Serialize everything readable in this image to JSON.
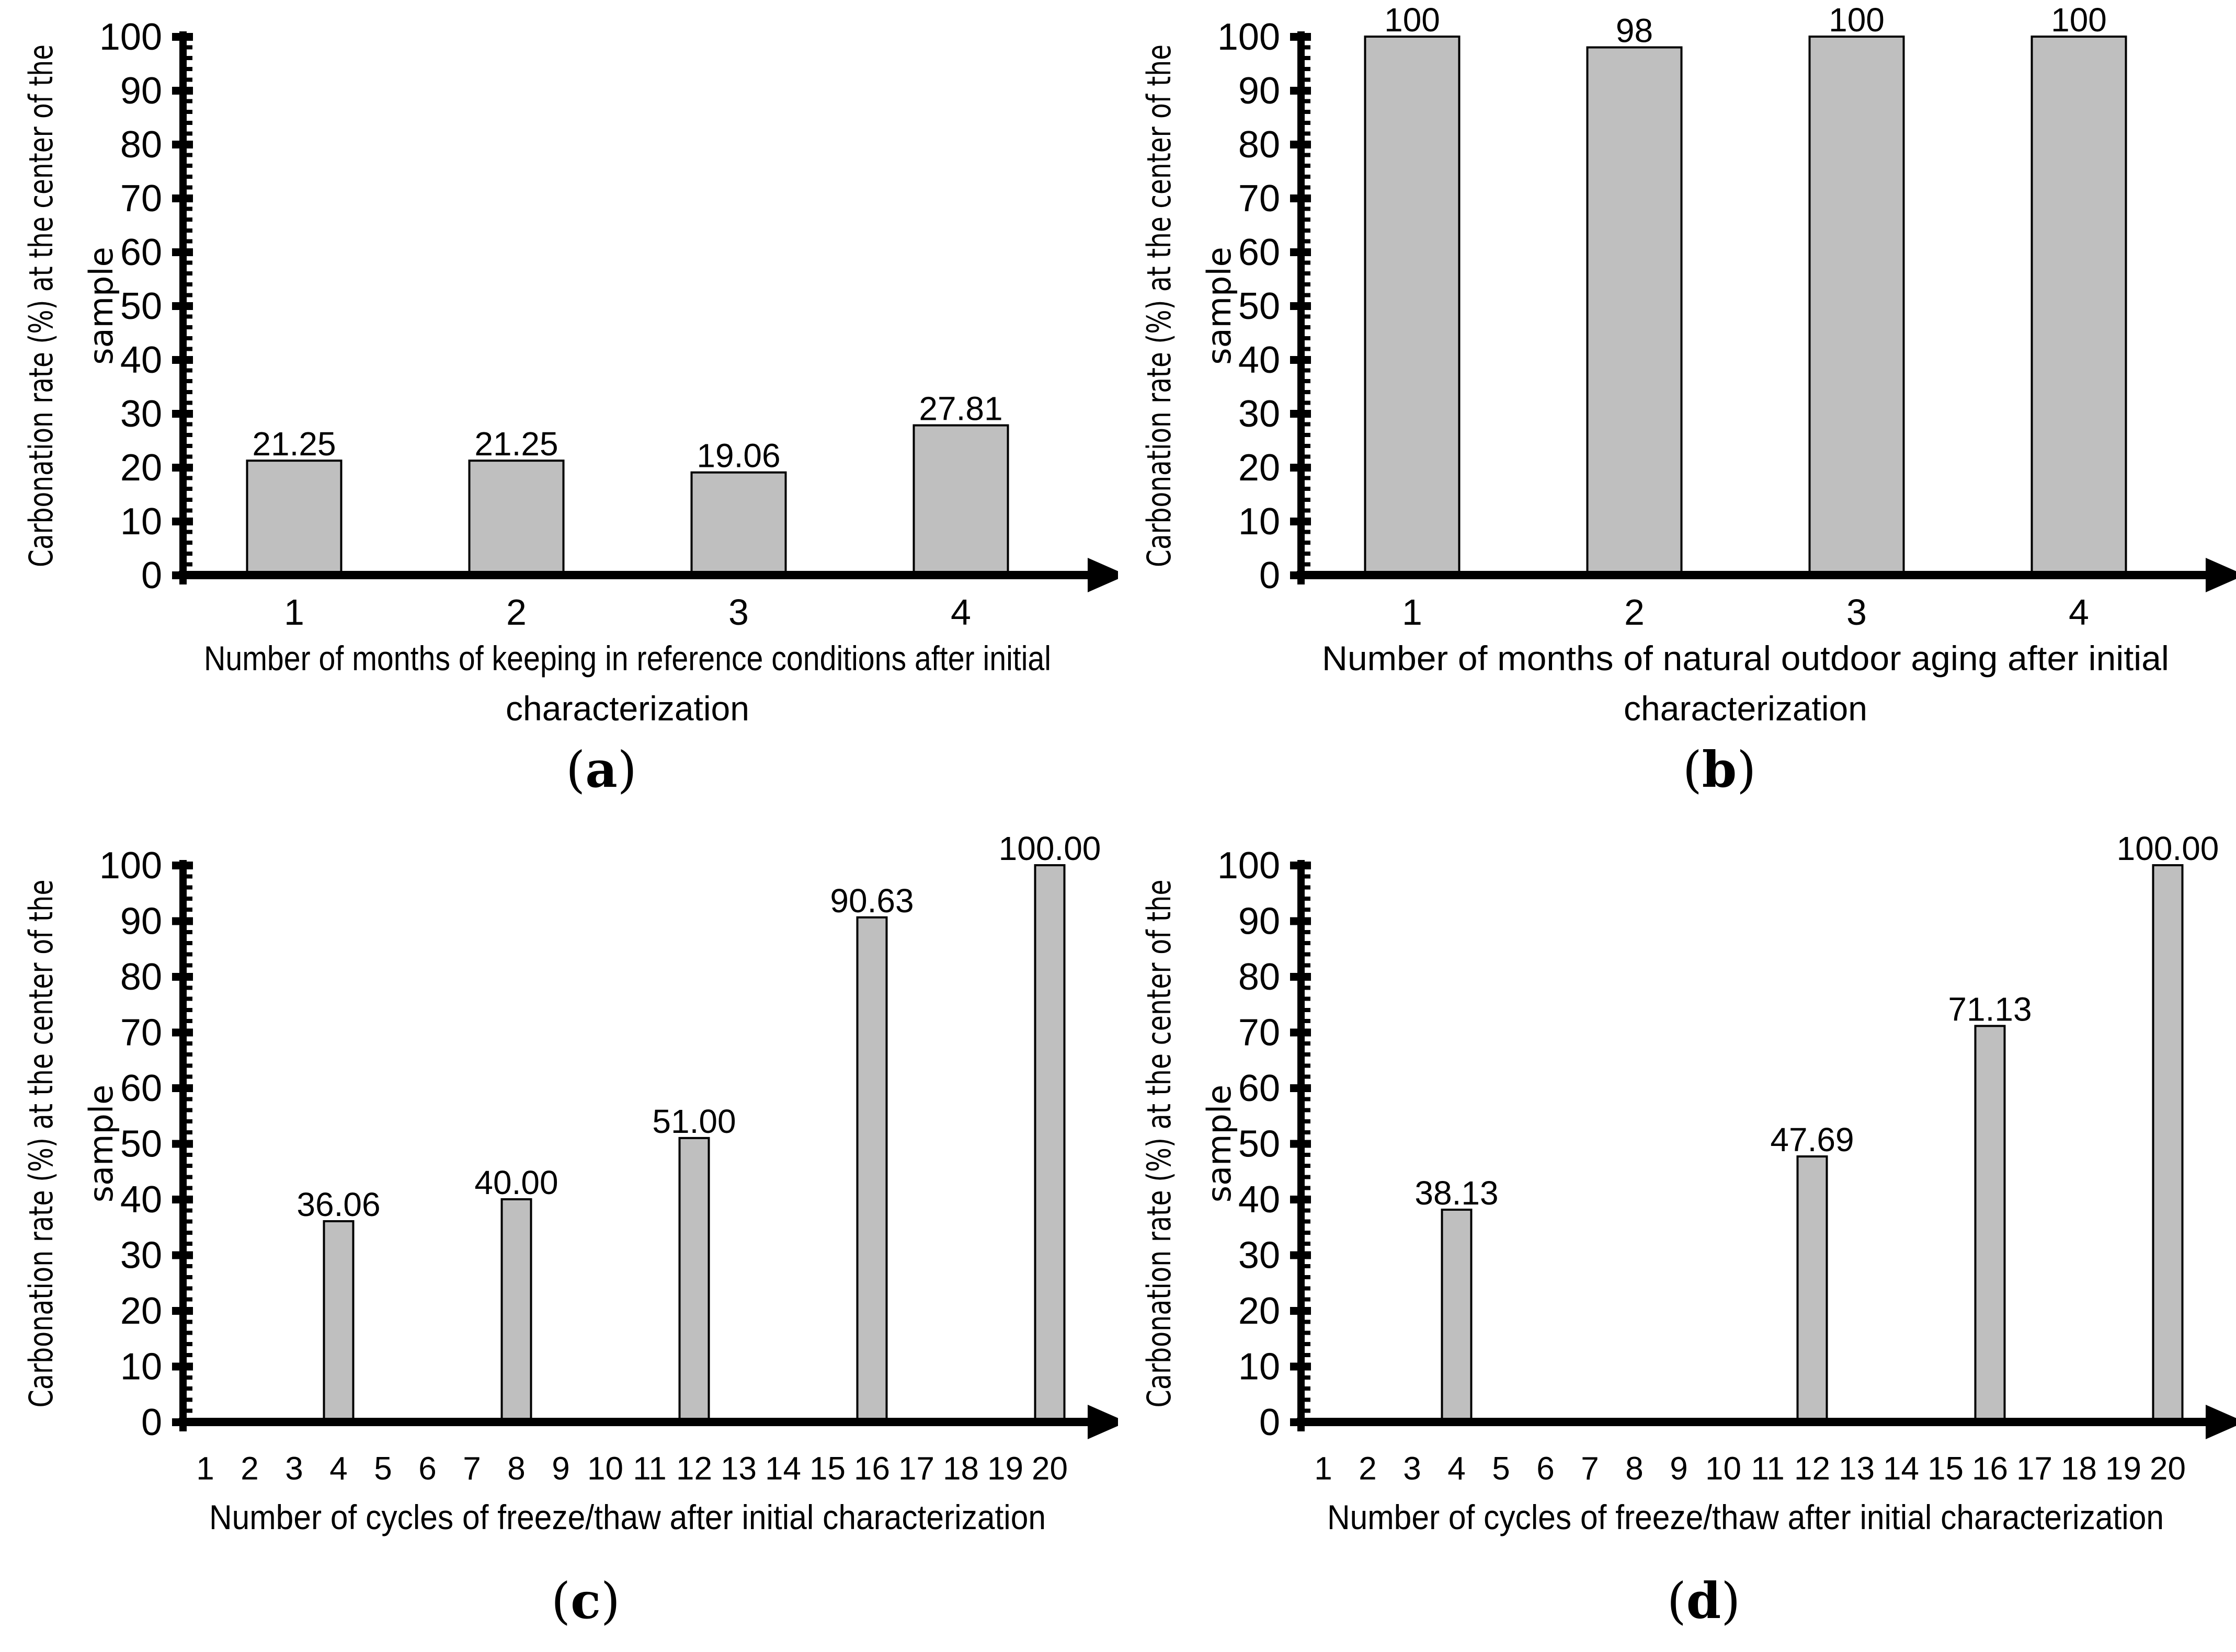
{
  "styles": {
    "background": "#ffffff",
    "bar_fill": "#bfbfbf",
    "bar_stroke": "#000000",
    "axis_color": "#000000",
    "text_color": "#000000"
  },
  "chart_data": [
    {
      "id": "a",
      "type": "bar",
      "caption": "(a)",
      "caption_open": "(",
      "caption_letter": "a",
      "caption_close": ")",
      "ylabel": "Carbonation rate (%) at the center of the sample",
      "ylabel_lines": [
        "Carbonation rate (%) at the center of the",
        "sample"
      ],
      "xlabel": "Number of months of keeping in reference conditions after initial characterization",
      "xlabel_lines": [
        "Number of months of keeping in reference conditions after initial",
        "characterization"
      ],
      "categories": [
        "1",
        "2",
        "3",
        "4"
      ],
      "values": [
        21.25,
        21.25,
        19.06,
        27.81
      ],
      "bar_labels": [
        "21.25",
        "21.25",
        "19.06",
        "27.81"
      ],
      "ylim": [
        0,
        100
      ],
      "ytick_step": 10,
      "yminor_step": 2,
      "yticks": [
        "0",
        "10",
        "20",
        "30",
        "40",
        "50",
        "60",
        "70",
        "80",
        "90",
        "100"
      ],
      "grid": false,
      "legend": null
    },
    {
      "id": "b",
      "type": "bar",
      "caption": "(b)",
      "caption_open": "(",
      "caption_letter": "b",
      "caption_close": ")",
      "ylabel": "Carbonation rate (%) at the center of the sample",
      "ylabel_lines": [
        "Carbonation rate (%) at the center of the",
        "sample"
      ],
      "xlabel": "Number of months of natural outdoor aging after initial characterization",
      "xlabel_lines": [
        "Number of months of natural outdoor aging after initial",
        "characterization"
      ],
      "categories": [
        "1",
        "2",
        "3",
        "4"
      ],
      "values": [
        100,
        98,
        100,
        100
      ],
      "bar_labels": [
        "100",
        "98",
        "100",
        "100"
      ],
      "ylim": [
        0,
        100
      ],
      "ytick_step": 10,
      "yminor_step": 2,
      "yticks": [
        "0",
        "10",
        "20",
        "30",
        "40",
        "50",
        "60",
        "70",
        "80",
        "90",
        "100"
      ],
      "grid": false,
      "legend": null
    },
    {
      "id": "c",
      "type": "bar",
      "caption": "(c)",
      "caption_open": "(",
      "caption_letter": "c",
      "caption_close": ")",
      "ylabel": "Carbonation rate (%) at the center of the sample",
      "ylabel_lines": [
        "Carbonation rate (%) at the center of the",
        "sample"
      ],
      "xlabel": "Number of cycles of freeze/thaw after initial characterization",
      "xlabel_lines": [
        "Number of cycles of freeze/thaw after initial characterization"
      ],
      "categories": [
        "1",
        "2",
        "3",
        "4",
        "5",
        "6",
        "7",
        "8",
        "9",
        "10",
        "11",
        "12",
        "13",
        "14",
        "15",
        "16",
        "17",
        "18",
        "19",
        "20"
      ],
      "values": [
        null,
        null,
        null,
        36.06,
        null,
        null,
        null,
        40,
        null,
        null,
        null,
        51,
        null,
        null,
        null,
        90.63,
        null,
        null,
        null,
        100
      ],
      "bar_labels": [
        null,
        null,
        null,
        "36.06",
        null,
        null,
        null,
        "40.00",
        null,
        null,
        null,
        "51.00",
        null,
        null,
        null,
        "90.63",
        null,
        null,
        null,
        "100.00"
      ],
      "ylim": [
        0,
        100
      ],
      "ytick_step": 10,
      "yminor_step": 2,
      "yticks": [
        "0",
        "10",
        "20",
        "30",
        "40",
        "50",
        "60",
        "70",
        "80",
        "90",
        "100"
      ],
      "grid": false,
      "legend": null
    },
    {
      "id": "d",
      "type": "bar",
      "caption": "(d)",
      "caption_open": "(",
      "caption_letter": "d",
      "caption_close": ")",
      "ylabel": "Carbonation rate (%) at the center of the sample",
      "ylabel_lines": [
        "Carbonation rate (%) at the center of the",
        "sample"
      ],
      "xlabel": "Number of cycles of freeze/thaw after initial characterization",
      "xlabel_lines": [
        "Number of cycles of freeze/thaw after initial characterization"
      ],
      "categories": [
        "1",
        "2",
        "3",
        "4",
        "5",
        "6",
        "7",
        "8",
        "9",
        "10",
        "11",
        "12",
        "13",
        "14",
        "15",
        "16",
        "17",
        "18",
        "19",
        "20"
      ],
      "values": [
        null,
        null,
        null,
        38.13,
        null,
        null,
        null,
        null,
        null,
        null,
        null,
        47.69,
        null,
        null,
        null,
        71.13,
        null,
        null,
        null,
        100
      ],
      "bar_labels": [
        null,
        null,
        null,
        "38.13",
        null,
        null,
        null,
        null,
        null,
        null,
        null,
        "47.69",
        null,
        null,
        null,
        "71.13",
        null,
        null,
        null,
        "100.00"
      ],
      "ylim": [
        0,
        100
      ],
      "ytick_step": 10,
      "yminor_step": 2,
      "yticks": [
        "0",
        "10",
        "20",
        "30",
        "40",
        "50",
        "60",
        "70",
        "80",
        "90",
        "100"
      ],
      "grid": false,
      "legend": null
    }
  ]
}
